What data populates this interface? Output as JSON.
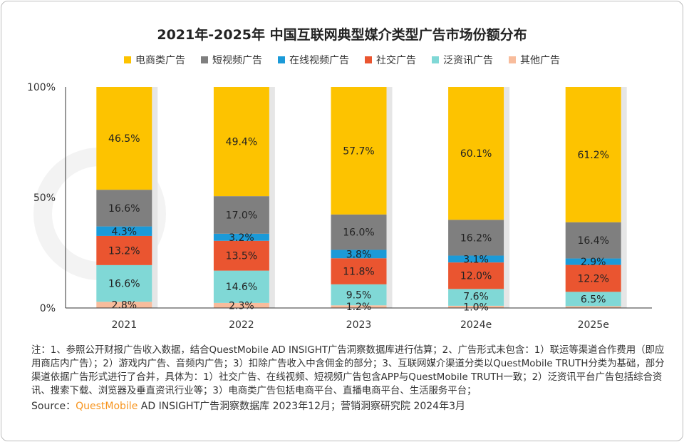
{
  "chart_data": {
    "type": "bar",
    "stacked": true,
    "title": "2021年-2025年 中国互联网典型媒介类型广告市场份额分布",
    "categories": [
      "2021",
      "2022",
      "2023",
      "2024e",
      "2025e"
    ],
    "yticks": [
      "0%",
      "50%",
      "100%"
    ],
    "ylim": [
      0,
      100
    ],
    "legend_position": "top",
    "series": [
      {
        "name": "电商类广告",
        "color": "#fdc300",
        "values": [
          46.5,
          49.4,
          57.7,
          60.1,
          61.2
        ],
        "labels": [
          "46.5%",
          "49.4%",
          "57.7%",
          "60.1%",
          "61.2%"
        ]
      },
      {
        "name": "短视频广告",
        "color": "#7f7f7f",
        "values": [
          16.6,
          17.0,
          16.0,
          16.2,
          16.4
        ],
        "labels": [
          "16.6%",
          "17.0%",
          "16.0%",
          "16.2%",
          "16.4%"
        ]
      },
      {
        "name": "在线视频广告",
        "color": "#1b9ad8",
        "values": [
          4.3,
          3.2,
          3.8,
          3.1,
          2.9
        ],
        "labels": [
          "4.3%",
          "3.2%",
          "3.8%",
          "3.1%",
          "2.9%"
        ]
      },
      {
        "name": "社交广告",
        "color": "#ea5530",
        "values": [
          13.2,
          13.5,
          11.8,
          12.0,
          12.2
        ],
        "labels": [
          "13.2%",
          "13.5%",
          "11.8%",
          "12.0%",
          "12.2%"
        ]
      },
      {
        "name": "泛资讯广告",
        "color": "#80d8d6",
        "values": [
          16.6,
          14.6,
          9.5,
          7.6,
          6.5
        ],
        "labels": [
          "16.6%",
          "14.6%",
          "9.5%",
          "7.6%",
          "6.5%"
        ]
      },
      {
        "name": "其他广告",
        "color": "#f8bc9c",
        "values": [
          2.8,
          2.3,
          1.2,
          1.0,
          0.8
        ],
        "labels": [
          "2.8%",
          "2.3%",
          "1.2%",
          "1.0%",
          ""
        ]
      }
    ]
  },
  "notes": "注：1、参照公开财报广告收入数据，结合QuestMobile AD INSIGHT广告洞察数据库进行估算；2、广告形式未包含：1）联运等渠道合作费用（即应用商店内广告）；2）游戏内广告、音频内广告；3）扣除广告收入中含佣金的部分；3、互联网媒介渠道分类以QuestMobile TRUTH分类为基础，部分渠道依据广告形式进行了合并，具体为：1）社交广告、在线视频、短视频广告包含APP与QuestMobile TRUTH一致；2）泛资讯平台广告包括综合资讯、搜索下载、浏览器及垂直资讯行业等；3）电商类广告包括电商平台、直播电商平台、生活服务平台；",
  "source": {
    "prefix": "Source：",
    "brand": "QuestMobile",
    "rest": " AD INSIGHT广告洞察数据库 2023年12月；营销洞察研究院 2024年3月"
  },
  "watermark": "QUESTMOBILE"
}
